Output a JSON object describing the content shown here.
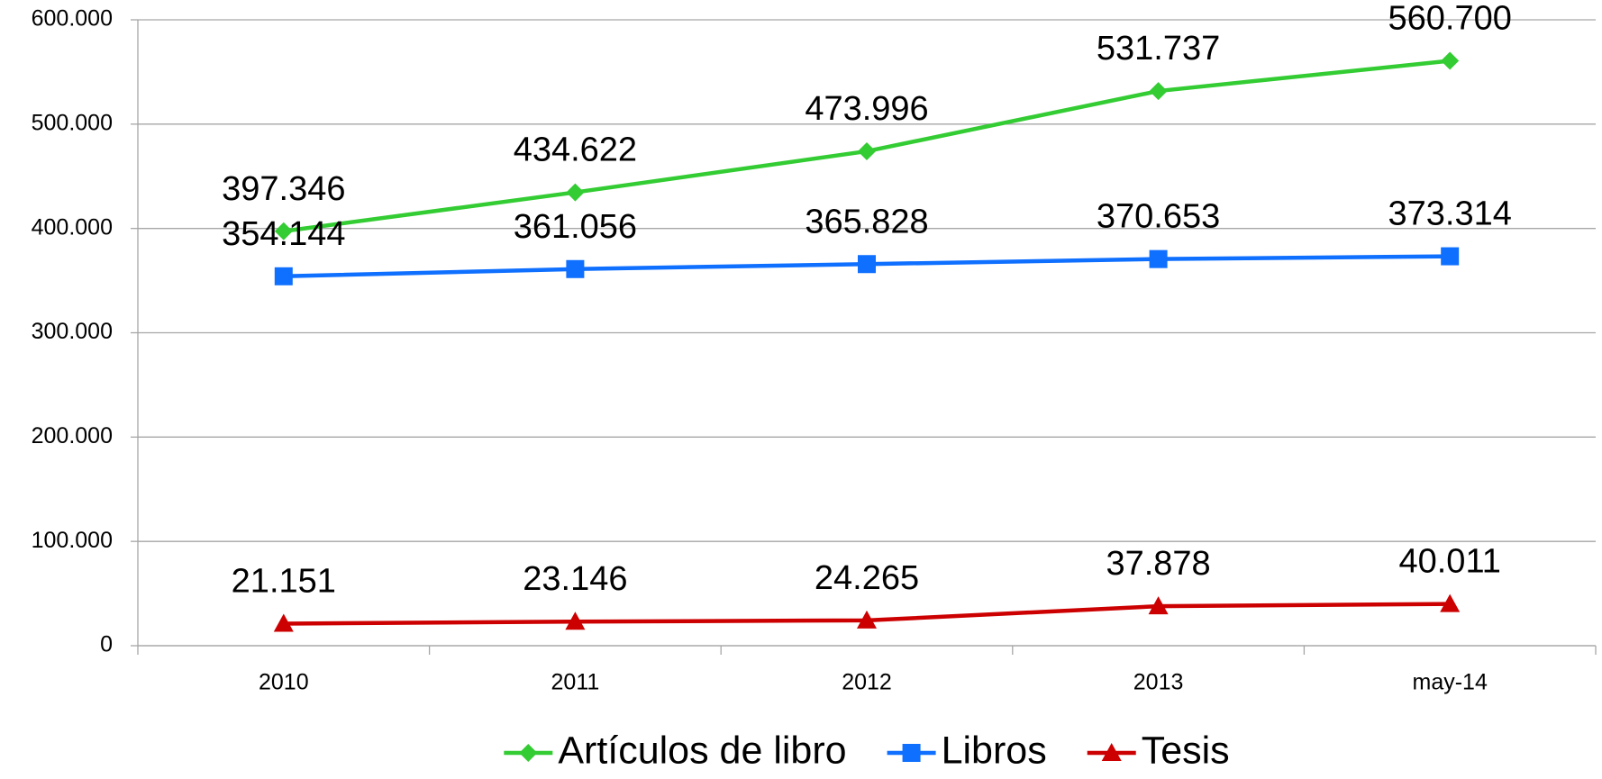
{
  "chart_data": {
    "type": "line",
    "categories": [
      "2010",
      "2011",
      "2012",
      "2013",
      "may-14"
    ],
    "series": [
      {
        "name": "Artículos de libro",
        "color": "#33cc33",
        "marker": "diamond",
        "values": [
          397346,
          434622,
          473996,
          531737,
          560700
        ],
        "value_labels": [
          "397.346",
          "434.622",
          "473.996",
          "531.737",
          "560.700"
        ]
      },
      {
        "name": "Libros",
        "color": "#0f6fff",
        "marker": "square",
        "values": [
          354144,
          361056,
          365828,
          370653,
          373314
        ],
        "value_labels": [
          "354.144",
          "361.056",
          "365.828",
          "370.653",
          "373.314"
        ]
      },
      {
        "name": "Tesis",
        "color": "#cc0000",
        "marker": "triangle",
        "values": [
          21151,
          23146,
          24265,
          37878,
          40011
        ],
        "value_labels": [
          "21.151",
          "23.146",
          "24.265",
          "37.878",
          "40.011"
        ]
      }
    ],
    "ylim": [
      0,
      600000
    ],
    "yticks": [
      0,
      {
        "value": 100000,
        "label": "100.000"
      },
      {
        "value": 200000,
        "label": "200.000"
      },
      {
        "value": 300000,
        "label": "300.000"
      },
      {
        "value": 400000,
        "label": "400.000"
      },
      {
        "value": 500000,
        "label": "500.000"
      },
      {
        "value": 600000,
        "label": "600.000"
      }
    ],
    "grid": true,
    "legend": "bottom"
  }
}
